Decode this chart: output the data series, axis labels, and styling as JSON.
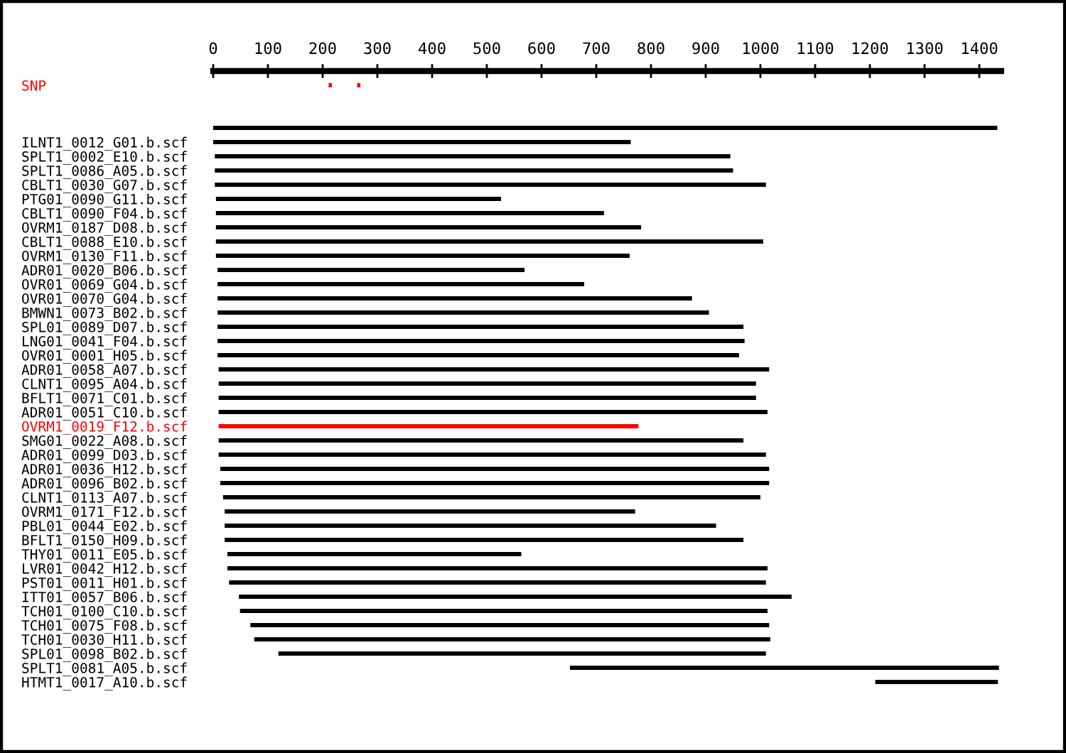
{
  "chart_data": {
    "type": "bar",
    "orientation": "horizontal",
    "categories": [
      "SNP",
      null,
      null,
      null,
      "ILNT1_0012_G01.b.scf",
      "SPLT1_0002_E10.b.scf",
      "SPLT1_0086_A05.b.scf",
      "CBLT1_0030_G07.b.scf",
      "PTG01_0090_G11.b.scf",
      "CBLT1_0090_F04.b.scf",
      "OVRM1_0187_D08.b.scf",
      "CBLT1_0088_E10.b.scf",
      "OVRM1_0130_F11.b.scf",
      "ADR01_0020_B06.b.scf",
      "OVR01_0069_G04.b.scf",
      "OVR01_0070_G04.b.scf",
      "BMWN1_0073_B02.b.scf",
      "SPL01_0089_D07.b.scf",
      "LNG01_0041_F04.b.scf",
      "OVR01_0001_H05.b.scf",
      "ADR01_0058_A07.b.scf",
      "CLNT1_0095_A04.b.scf",
      "BFLT1_0071_C01.b.scf",
      "ADR01_0051_C10.b.scf",
      "OVRM1_0019_F12.b.scf",
      "SMG01_0022_A08.b.scf",
      "ADR01_0099_D03.b.scf",
      "ADR01_0036_H12.b.scf",
      "ADR01_0096_B02.b.scf",
      "CLNT1_0113_A07.b.scf",
      "OVRM1_0171_F12.b.scf",
      "PBL01_0044_E02.b.scf",
      "BFLT1_0150_H09.b.scf",
      "THY01_0011_E05.b.scf",
      "LVR01_0042_H12.b.scf",
      "PST01_0011_H01.b.scf",
      "ITT01_0057_B06.b.scf",
      "TCH01_0100_C10.b.scf",
      "TCH01_0075_F08.b.scf",
      "TCH01_0030_H11.b.scf",
      "SPL01_0098_B02.b.scf",
      "SPLT1_0081_A05.b.scf",
      "HTMT1_0017_A10.b.scf"
    ],
    "series": [
      {
        "base": [
          null,
          null,
          null,
          0,
          0,
          3,
          3,
          3,
          5,
          5,
          5,
          5,
          5,
          8,
          8,
          8,
          8,
          8,
          8,
          8,
          10,
          10,
          10,
          10,
          10,
          10,
          10,
          13,
          13,
          18,
          21,
          21,
          21,
          26,
          26,
          29,
          47,
          49,
          68,
          75,
          119,
          652,
          1210
        ],
        "values": [
          null,
          null,
          null,
          1433,
          763,
          942,
          947,
          1007,
          521,
          709,
          777,
          1000,
          756,
          561,
          670,
          867,
          898,
          961,
          963,
          953,
          1006,
          982,
          982,
          1003,
          767,
          959,
          1000,
          1003,
          1003,
          982,
          750,
          898,
          948,
          537,
          987,
          981,
          1010,
          964,
          948,
          943,
          891,
          784,
          224
        ],
        "colors": [
          "#ff0000",
          "#000000",
          "#000000",
          "#000000",
          "#000000",
          "#000000",
          "#000000",
          "#000000",
          "#000000",
          "#000000",
          "#000000",
          "#000000",
          "#000000",
          "#000000",
          "#000000",
          "#000000",
          "#000000",
          "#000000",
          "#000000",
          "#000000",
          "#000000",
          "#000000",
          "#000000",
          "#000000",
          "#ff0000",
          "#000000",
          "#000000",
          "#000000",
          "#000000",
          "#000000",
          "#000000",
          "#000000",
          "#000000",
          "#000000",
          "#000000",
          "#000000",
          "#000000",
          "#000000",
          "#000000",
          "#000000",
          "#000000",
          "#000000",
          "#000000"
        ]
      },
      {
        "color": "#ff0000",
        "base": [
          211,
          null,
          null,
          null,
          null,
          null,
          null,
          null,
          null,
          null,
          null,
          null,
          null,
          null,
          null,
          null,
          null,
          null,
          null,
          null,
          null,
          null,
          null,
          null,
          null,
          null,
          null,
          null,
          null,
          null,
          null,
          null,
          null,
          null,
          null,
          null,
          null,
          null,
          null,
          null,
          null,
          null,
          null
        ],
        "values": [
          6,
          null,
          null,
          null,
          null,
          null,
          null,
          null,
          null,
          null,
          null,
          null,
          null,
          null,
          null,
          null,
          null,
          null,
          null,
          null,
          null,
          null,
          null,
          null,
          null,
          null,
          null,
          null,
          null,
          null,
          null,
          null,
          null,
          null,
          null,
          null,
          null,
          null,
          null,
          null,
          null,
          null,
          null
        ]
      },
      {
        "color": "#ff0000",
        "base": [
          263,
          null,
          null,
          null,
          null,
          null,
          null,
          null,
          null,
          null,
          null,
          null,
          null,
          null,
          null,
          null,
          null,
          null,
          null,
          null,
          null,
          null,
          null,
          null,
          null,
          null,
          null,
          null,
          null,
          null,
          null,
          null,
          null,
          null,
          null,
          null,
          null,
          null,
          null,
          null,
          null,
          null,
          null
        ],
        "values": [
          6,
          null,
          null,
          null,
          null,
          null,
          null,
          null,
          null,
          null,
          null,
          null,
          null,
          null,
          null,
          null,
          null,
          null,
          null,
          null,
          null,
          null,
          null,
          null,
          null,
          null,
          null,
          null,
          null,
          null,
          null,
          null,
          null,
          null,
          null,
          null,
          null,
          null,
          null,
          null,
          null,
          null,
          null
        ]
      }
    ],
    "xlim": [
      0,
      1440
    ],
    "xticks": [
      0,
      100,
      200,
      300,
      400,
      500,
      600,
      700,
      800,
      900,
      1000,
      1100,
      1200,
      1300,
      1400
    ],
    "grid": false,
    "legend": false
  }
}
